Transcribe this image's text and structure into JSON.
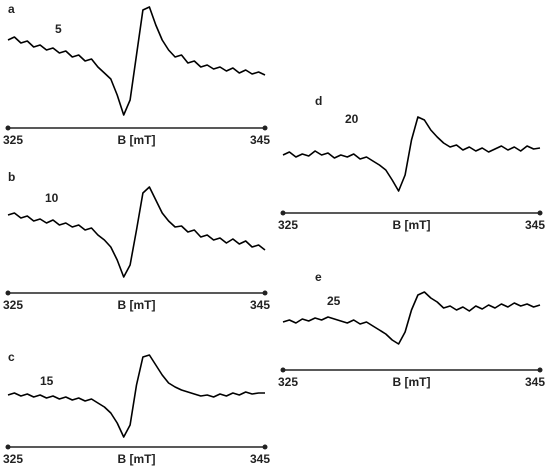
{
  "chart_data": [
    {
      "type": "line",
      "panel_label": "a",
      "annotation": "5",
      "xlabel": "B [mT]",
      "color": "#000000",
      "xlim": [
        325,
        345
      ],
      "xticks": [
        325,
        345
      ],
      "ylim": [
        -60,
        65
      ],
      "x": [
        325,
        325.5,
        326,
        326.5,
        327,
        327.5,
        328,
        328.5,
        329,
        329.5,
        330,
        330.5,
        331,
        331.5,
        332,
        332.5,
        333,
        333.5,
        334,
        334.5,
        335,
        335.5,
        336,
        336.5,
        337,
        337.5,
        338,
        338.5,
        339,
        339.5,
        340,
        340.5,
        341,
        341.5,
        342,
        342.5,
        343,
        343.5,
        344,
        344.5,
        345
      ],
      "values": [
        25,
        28,
        22,
        24,
        18,
        20,
        15,
        17,
        12,
        14,
        8,
        10,
        4,
        6,
        -2,
        -8,
        -14,
        -30,
        -50,
        -35,
        10,
        55,
        58,
        40,
        25,
        15,
        8,
        10,
        2,
        4,
        -2,
        0,
        -4,
        -2,
        -6,
        -3,
        -8,
        -5,
        -9,
        -7,
        -10
      ]
    },
    {
      "type": "line",
      "panel_label": "b",
      "annotation": "10",
      "xlabel": "B [mT]",
      "color": "#000000",
      "xlim": [
        325,
        345
      ],
      "xticks": [
        325,
        345
      ],
      "ylim": [
        -55,
        60
      ],
      "x": [
        325,
        325.5,
        326,
        326.5,
        327,
        327.5,
        328,
        328.5,
        329,
        329.5,
        330,
        330.5,
        331,
        331.5,
        332,
        332.5,
        333,
        333.5,
        334,
        334.5,
        335,
        335.5,
        336,
        336.5,
        337,
        337.5,
        338,
        338.5,
        339,
        339.5,
        340,
        340.5,
        341,
        341.5,
        342,
        342.5,
        343,
        343.5,
        344,
        344.5,
        345
      ],
      "values": [
        20,
        22,
        17,
        19,
        14,
        16,
        12,
        15,
        10,
        12,
        8,
        10,
        5,
        7,
        0,
        -5,
        -12,
        -25,
        -42,
        -30,
        5,
        42,
        48,
        35,
        22,
        14,
        8,
        9,
        3,
        5,
        -2,
        0,
        -5,
        -3,
        -8,
        -4,
        -9,
        -6,
        -12,
        -10,
        -15
      ]
    },
    {
      "type": "line",
      "panel_label": "c",
      "annotation": "15",
      "xlabel": "B [mT]",
      "color": "#000000",
      "xlim": [
        325,
        345
      ],
      "xticks": [
        325,
        345
      ],
      "ylim": [
        -50,
        55
      ],
      "x": [
        325,
        325.5,
        326,
        326.5,
        327,
        327.5,
        328,
        328.5,
        329,
        329.5,
        330,
        330.5,
        331,
        331.5,
        332,
        332.5,
        333,
        333.5,
        334,
        334.5,
        335,
        335.5,
        336,
        336.5,
        337,
        337.5,
        338,
        338.5,
        339,
        339.5,
        340,
        340.5,
        341,
        341.5,
        342,
        342.5,
        343,
        343.5,
        344,
        344.5,
        345
      ],
      "values": [
        0,
        2,
        -1,
        1,
        -2,
        0,
        -3,
        -1,
        -4,
        -2,
        -5,
        -3,
        -6,
        -4,
        -8,
        -12,
        -18,
        -28,
        -42,
        -30,
        10,
        38,
        40,
        30,
        20,
        12,
        8,
        5,
        3,
        1,
        -1,
        0,
        -2,
        1,
        -1,
        2,
        0,
        3,
        1,
        2,
        2
      ]
    },
    {
      "type": "line",
      "panel_label": "d",
      "annotation": "20",
      "xlabel": "B [mT]",
      "color": "#000000",
      "xlim": [
        325,
        345
      ],
      "xticks": [
        325,
        345
      ],
      "ylim": [
        -50,
        55
      ],
      "x": [
        325,
        325.5,
        326,
        326.5,
        327,
        327.5,
        328,
        328.5,
        329,
        329.5,
        330,
        330.5,
        331,
        331.5,
        332,
        332.5,
        333,
        333.5,
        334,
        334.5,
        335,
        335.5,
        336,
        336.5,
        337,
        337.5,
        338,
        338.5,
        339,
        339.5,
        340,
        340.5,
        341,
        341.5,
        342,
        342.5,
        343,
        343.5,
        344,
        344.5,
        345
      ],
      "values": [
        0,
        3,
        -2,
        1,
        -1,
        4,
        0,
        2,
        -3,
        0,
        -2,
        1,
        -4,
        -2,
        -6,
        -10,
        -15,
        -25,
        -36,
        -20,
        15,
        38,
        35,
        25,
        18,
        12,
        8,
        10,
        5,
        8,
        4,
        7,
        3,
        6,
        9,
        5,
        8,
        4,
        9,
        6,
        7
      ]
    },
    {
      "type": "line",
      "panel_label": "e",
      "annotation": "25",
      "xlabel": "B [mT]",
      "color": "#000000",
      "xlim": [
        325,
        345
      ],
      "xticks": [
        325,
        345
      ],
      "ylim": [
        -45,
        45
      ],
      "x": [
        325,
        325.5,
        326,
        326.5,
        327,
        327.5,
        328,
        328.5,
        329,
        329.5,
        330,
        330.5,
        331,
        331.5,
        332,
        332.5,
        333,
        333.5,
        334,
        334.5,
        335,
        335.5,
        336,
        336.5,
        337,
        337.5,
        338,
        338.5,
        339,
        339.5,
        340,
        340.5,
        341,
        341.5,
        342,
        342.5,
        343,
        343.5,
        344,
        344.5,
        345
      ],
      "values": [
        -2,
        0,
        -3,
        1,
        -1,
        2,
        0,
        3,
        1,
        -1,
        -3,
        0,
        -4,
        -2,
        -6,
        -10,
        -14,
        -20,
        -24,
        -12,
        10,
        25,
        28,
        22,
        18,
        12,
        14,
        10,
        13,
        9,
        14,
        11,
        15,
        12,
        16,
        13,
        17,
        14,
        16,
        13,
        15
      ]
    }
  ]
}
